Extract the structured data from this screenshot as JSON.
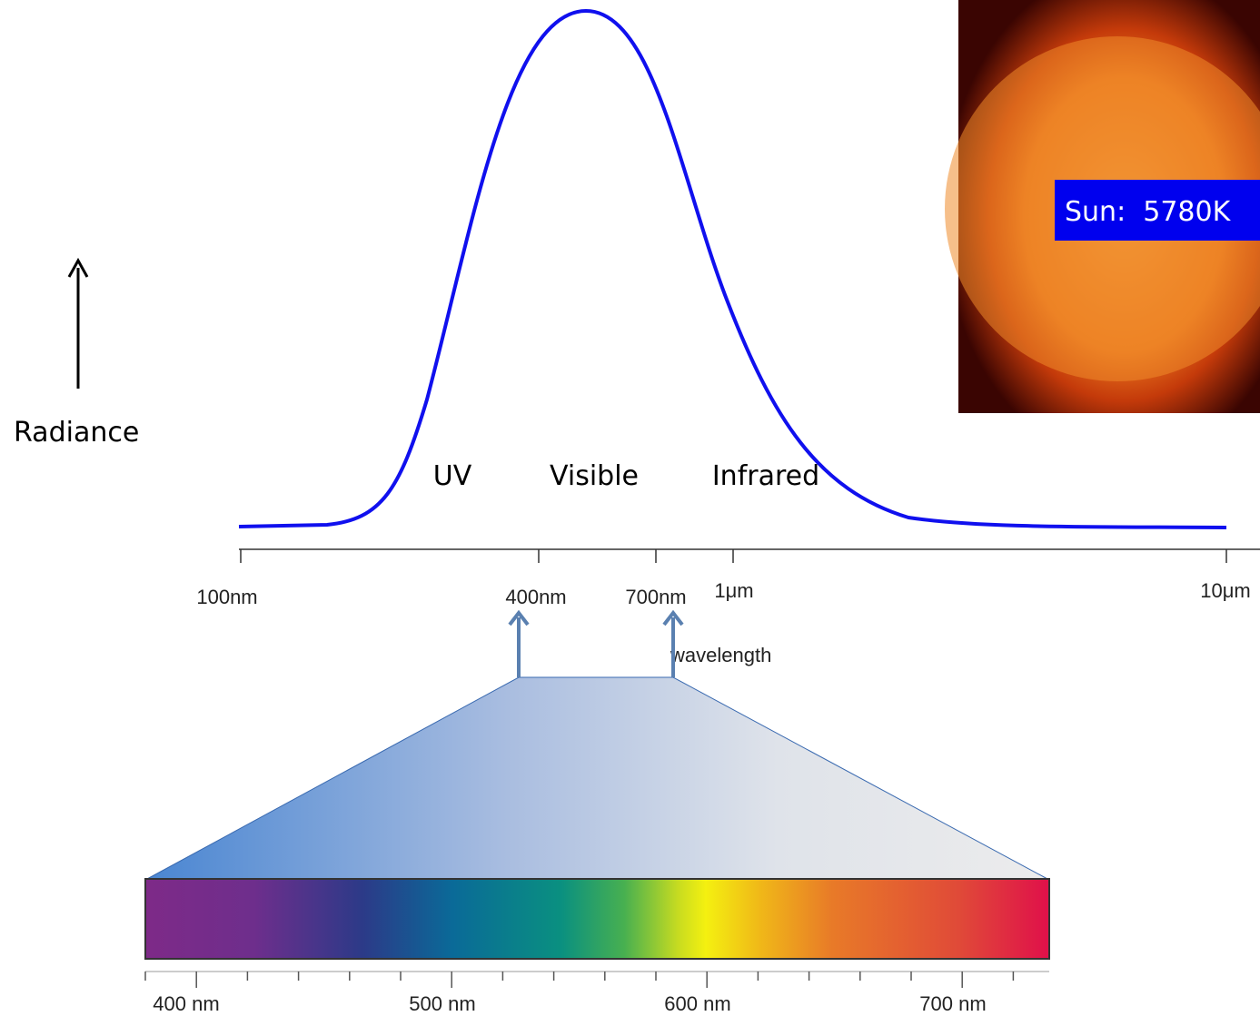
{
  "axis_label": "Radiance",
  "regions": [
    "UV",
    "Visible",
    "Infrared"
  ],
  "wavelength_ticks": [
    "100nm",
    "400nm",
    "700nm",
    "1μm",
    "10μm"
  ],
  "wavelength_title": "wavelength",
  "sun_label": "Sun:  5780K",
  "spectrum_ticks": [
    "400 nm",
    "500 nm",
    "600 nm",
    "700 nm"
  ]
}
